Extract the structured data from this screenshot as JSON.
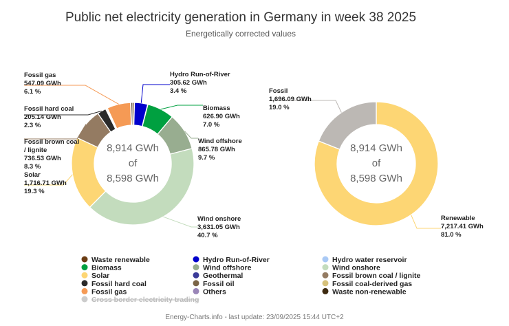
{
  "header": {
    "title": "Public net electricity generation in Germany in week 38 2025",
    "subtitle": "Energetically corrected values"
  },
  "footer": {
    "text": "Energy-Charts.info - last update: 23/09/2025 15:44 UTC+2"
  },
  "colors": {
    "waste_renewable": "#6b3d14",
    "hydro_run_of_river": "#0000cc",
    "hydro_reservoir": "#a9c9f5",
    "biomass": "#00a040",
    "wind_offshore": "#98ad90",
    "wind_onshore": "#c3dcbd",
    "solar": "#fdd674",
    "geothermal": "#3b3b99",
    "fossil_brown_coal": "#947b62",
    "fossil_hard_coal": "#2a2a2a",
    "fossil_oil": "#7b6547",
    "fossil_coal_derived_gas": "#d7c27b",
    "fossil_gas": "#f59a55",
    "others": "#9a86b8",
    "waste_non_renewable": "#3d2a10",
    "cross_border": "#cccccc",
    "renewable": "#fdd674",
    "fossil": "#bcb8b4"
  },
  "chart_data": [
    {
      "type": "pie",
      "variant": "donut",
      "title": "Public net electricity generation in Germany in week 38 2025",
      "subtitle": "Energetically corrected values",
      "center_text": [
        "8,914 GWh",
        "of",
        "8,598 GWh"
      ],
      "unit": "GWh",
      "slices": [
        {
          "name": "Waste renewable",
          "value": 40,
          "color_key": "waste_renewable",
          "label": null,
          "show": true
        },
        {
          "name": "Hydro Run-of-River",
          "value": 305.62,
          "color_key": "hydro_run_of_river",
          "label": [
            "Hydro Run-of-River",
            "305.62 GWh",
            "3.4 %"
          ],
          "show": true
        },
        {
          "name": "Hydro water reservoir",
          "value": 5,
          "color_key": "hydro_reservoir",
          "label": null,
          "show": true
        },
        {
          "name": "Biomass",
          "value": 626.9,
          "color_key": "biomass",
          "label": [
            "Biomass",
            "626.90 GWh",
            "7.0 %"
          ],
          "show": true
        },
        {
          "name": "Wind offshore",
          "value": 865.78,
          "color_key": "wind_offshore",
          "label": [
            "Wind offshore",
            "865.78 GWh",
            "9.7 %"
          ],
          "show": true
        },
        {
          "name": "Wind onshore",
          "value": 3631.05,
          "color_key": "wind_onshore",
          "label": [
            "Wind onshore",
            "3,631.05 GWh",
            "40.7 %"
          ],
          "show": true
        },
        {
          "name": "Solar",
          "value": 1716.71,
          "color_key": "solar",
          "label": [
            "Solar",
            "1,716.71 GWh",
            "19.3 %"
          ],
          "show": true
        },
        {
          "name": "Fossil brown coal / lignite",
          "value": 736.53,
          "color_key": "fossil_brown_coal",
          "label": [
            "Fossil brown coal",
            "/ lignite",
            "736.53 GWh",
            "8.3 %"
          ],
          "show": true
        },
        {
          "name": "Fossil hard coal",
          "value": 205.14,
          "color_key": "fossil_hard_coal",
          "label": [
            "Fossil hard coal",
            "205.14 GWh",
            "2.3 %"
          ],
          "show": true
        },
        {
          "name": "Fossil oil",
          "value": 20,
          "color_key": "fossil_oil",
          "label": null,
          "show": true
        },
        {
          "name": "Fossil coal-derived gas",
          "value": 25,
          "color_key": "fossil_coal_derived_gas",
          "label": null,
          "show": true
        },
        {
          "name": "Fossil gas",
          "value": 547.09,
          "color_key": "fossil_gas",
          "label": [
            "Fossil gas",
            "547.09 GWh",
            "6.1 %"
          ],
          "show": true
        },
        {
          "name": "Others",
          "value": 10,
          "color_key": "others",
          "label": null,
          "show": true
        },
        {
          "name": "Waste non-renewable",
          "value": 40,
          "color_key": "waste_non_renewable",
          "label": null,
          "show": true
        }
      ]
    },
    {
      "type": "pie",
      "variant": "donut",
      "center_text": [
        "8,914 GWh",
        "of",
        "8,598 GWh"
      ],
      "unit": "GWh",
      "slices": [
        {
          "name": "Renewable",
          "value": 7217.41,
          "color_key": "renewable",
          "label": [
            "Renewable",
            "7,217.41 GWh",
            "81.0 %"
          ]
        },
        {
          "name": "Fossil",
          "value": 1696.09,
          "color_key": "fossil",
          "label": [
            "Fossil",
            "1,696.09 GWh",
            "19.0 %"
          ]
        }
      ]
    }
  ],
  "legend": {
    "items": [
      {
        "label": "Waste renewable",
        "color_key": "waste_renewable",
        "hidden": false
      },
      {
        "label": "Hydro Run-of-River",
        "color_key": "hydro_run_of_river",
        "hidden": false
      },
      {
        "label": "Hydro water reservoir",
        "color_key": "hydro_reservoir",
        "hidden": false
      },
      {
        "label": "Biomass",
        "color_key": "biomass",
        "hidden": false
      },
      {
        "label": "Wind offshore",
        "color_key": "wind_offshore",
        "hidden": false
      },
      {
        "label": "Wind onshore",
        "color_key": "wind_onshore",
        "hidden": false
      },
      {
        "label": "Solar",
        "color_key": "solar",
        "hidden": false
      },
      {
        "label": "Geothermal",
        "color_key": "geothermal",
        "hidden": false
      },
      {
        "label": "Fossil brown coal / lignite",
        "color_key": "fossil_brown_coal",
        "hidden": false
      },
      {
        "label": "Fossil hard coal",
        "color_key": "fossil_hard_coal",
        "hidden": false
      },
      {
        "label": "Fossil oil",
        "color_key": "fossil_oil",
        "hidden": false
      },
      {
        "label": "Fossil coal-derived gas",
        "color_key": "fossil_coal_derived_gas",
        "hidden": false
      },
      {
        "label": "Fossil gas",
        "color_key": "fossil_gas",
        "hidden": false
      },
      {
        "label": "Others",
        "color_key": "others",
        "hidden": false
      },
      {
        "label": "Waste non-renewable",
        "color_key": "waste_non_renewable",
        "hidden": false
      },
      {
        "label": "Cross border electricity trading",
        "color_key": "cross_border",
        "hidden": true
      }
    ]
  }
}
